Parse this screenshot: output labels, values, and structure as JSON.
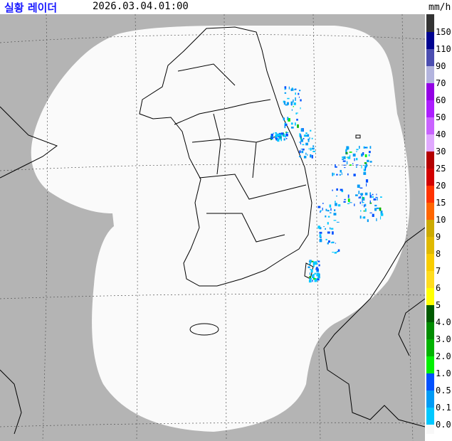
{
  "header": {
    "title": "실황 레이더",
    "datetime": "2026.03.04.01:00",
    "unit": "mm/h"
  },
  "legend": {
    "labels": [
      "150",
      "110",
      "90",
      "70",
      "60",
      "50",
      "40",
      "30",
      "25",
      "20",
      "15",
      "10",
      "9",
      "8",
      "7",
      "6",
      "5",
      "4.0",
      "3.0",
      "2.0",
      "1.0",
      "0.5",
      "0.1",
      "0.0"
    ],
    "top_color": "#333333",
    "interval_colors": [
      "#000390",
      "#4c4eb1",
      "#b3b4de",
      "#9300e4",
      "#ad1eff",
      "#c963ff",
      "#e0a9ff",
      "#b40000",
      "#d20000",
      "#ff3300",
      "#ff6600",
      "#ccaa00",
      "#e0b900",
      "#f9cd00",
      "#ffdc1f",
      "#ffff00",
      "#005a00",
      "#008c00",
      "#00b300",
      "#00f000",
      "#0051ff",
      "#009bf5",
      "#00c8ff"
    ],
    "bottom_color": "#f8f8f8"
  },
  "map": {
    "outside_color": "#b4b4b4",
    "coverage_color": "#fafafa"
  }
}
